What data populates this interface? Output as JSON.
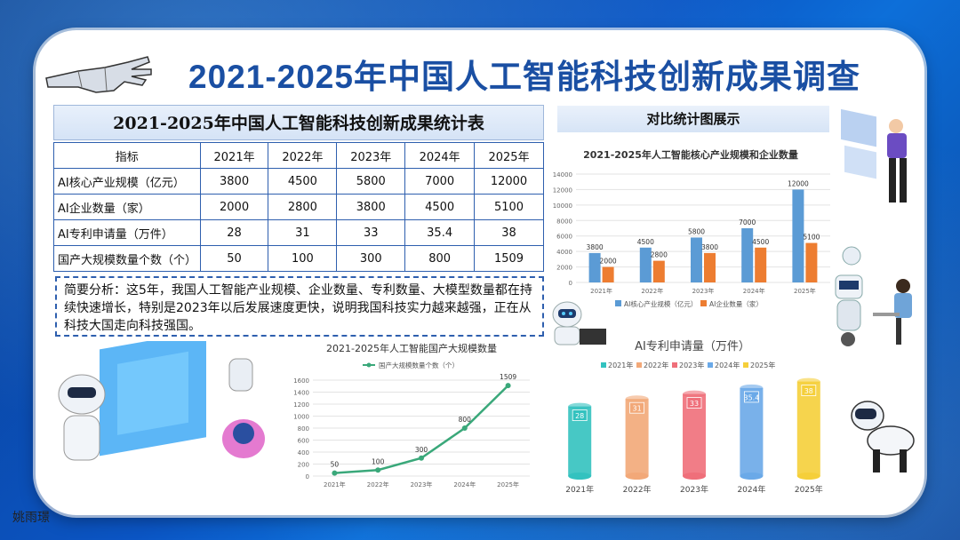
{
  "page": {
    "title": "2021-2025年中国人工智能科技创新成果调查",
    "signature": "姚雨璟"
  },
  "stats_table": {
    "title": "2021-2025年中国人工智能科技创新成果统计表",
    "headers": [
      "指标",
      "2021年",
      "2022年",
      "2023年",
      "2024年",
      "2025年"
    ],
    "rows": [
      [
        "AI核心产业规模（亿元）",
        "3800",
        "4500",
        "5800",
        "7000",
        "12000"
      ],
      [
        "AI企业数量（家）",
        "2000",
        "2800",
        "3800",
        "4500",
        "5100"
      ],
      [
        "AI专利申请量（万件）",
        "28",
        "31",
        "33",
        "35.4",
        "38"
      ],
      [
        "国产大规模数量个数（个）",
        "50",
        "100",
        "300",
        "800",
        "1509"
      ]
    ]
  },
  "analysis": {
    "text": "简要分析：这5年，我国人工智能产业规模、企业数量、专利数量、大模型数量都在持续快速增长，特别是2023年以后发展速度更快，说明我国科技实力越来越强，正在从科技大国走向科技强国。"
  },
  "compare": {
    "title": "对比统计图展示"
  },
  "colors": {
    "blue": "#5b9bd5",
    "orange": "#ed7d31",
    "line_green": "#3aa87a",
    "title_blue": "#1a4fa3"
  },
  "chart_data": [
    {
      "type": "bar",
      "title": "2021-2025年人工智能核心产业规模和企业数量",
      "categories": [
        "2021年",
        "2022年",
        "2023年",
        "2024年",
        "2025年"
      ],
      "series": [
        {
          "name": "AI核心产业规模（亿元）",
          "values": [
            3800,
            4500,
            5800,
            7000,
            12000
          ],
          "color": "#5b9bd5"
        },
        {
          "name": "AI企业数量（家）",
          "values": [
            2000,
            2800,
            3800,
            4500,
            5100
          ],
          "color": "#ed7d31"
        }
      ],
      "yticks": [
        "0",
        "2000",
        "4000",
        "6000",
        "8000",
        "10000",
        "12000",
        "14000"
      ],
      "ylim": [
        0,
        14000
      ],
      "legend": "bottom",
      "grid": true
    },
    {
      "type": "line",
      "title": "2021-2025年人工智能国产大规模数量",
      "categories": [
        "2021年",
        "2022年",
        "2023年",
        "2024年",
        "2025年"
      ],
      "series": [
        {
          "name": "国产大规模数量个数（个）",
          "values": [
            50,
            100,
            300,
            800,
            1509
          ],
          "color": "#3aa87a"
        }
      ],
      "yticks": [
        "0",
        "200",
        "400",
        "600",
        "800",
        "1000",
        "1200",
        "1400",
        "1600"
      ],
      "ylim": [
        0,
        1600
      ],
      "legend": "top",
      "grid": true
    },
    {
      "type": "bar",
      "title": "AI专利申请量（万件）",
      "categories": [
        "2021年",
        "2022年",
        "2023年",
        "2024年",
        "2025年"
      ],
      "values": [
        28,
        31,
        33,
        35.4,
        38
      ],
      "colors": [
        "#33c2bf",
        "#f2a878",
        "#ef6f7a",
        "#6aa9e8",
        "#f5cf3a"
      ],
      "legend_labels": [
        "2021年",
        "2022年",
        "2023年",
        "2024年",
        "2025年"
      ],
      "legend": "top",
      "grid": false
    }
  ]
}
